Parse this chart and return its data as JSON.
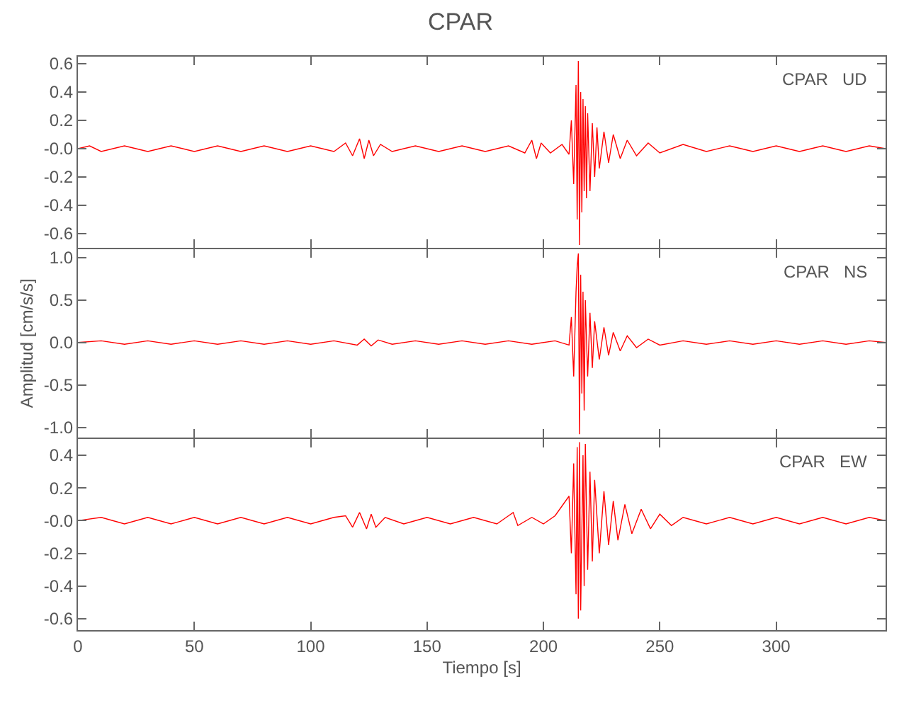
{
  "chart_data": [
    {
      "type": "line",
      "title": "CPAR",
      "annotations": [
        "CPAR   UD"
      ],
      "tick_labels": "y",
      "xlim": [
        0,
        347
      ],
      "xticks": [
        0,
        50,
        100,
        150,
        200,
        250,
        300
      ],
      "ylim": [
        -0.7,
        0.65
      ],
      "yticks": [
        {
          "value": -0.6,
          "label": "-0.6"
        },
        {
          "value": -0.4,
          "label": "-0.4"
        },
        {
          "value": -0.2,
          "label": "-0.2"
        },
        {
          "value": 0,
          "label": "-0.0"
        },
        0.2,
        0.4,
        0.6
      ],
      "series": [
        {
          "color": "#ff0000",
          "x": [
            0,
            5,
            10,
            20,
            30,
            40,
            50,
            60,
            70,
            80,
            90,
            100,
            110,
            115,
            118,
            121,
            123,
            125,
            127,
            130,
            135,
            145,
            155,
            165,
            175,
            185,
            192,
            195,
            197,
            199,
            203,
            208,
            211,
            212,
            213,
            214,
            214.5,
            215,
            215.5,
            216,
            216.5,
            217,
            217.5,
            218,
            218.5,
            219,
            220,
            221,
            222,
            223,
            224,
            226,
            228,
            230,
            233,
            236,
            240,
            245,
            250,
            260,
            270,
            280,
            290,
            300,
            310,
            320,
            330,
            340,
            347
          ],
          "values": [
            0,
            0.02,
            -0.02,
            0.02,
            -0.02,
            0.02,
            -0.02,
            0.02,
            -0.02,
            0.02,
            -0.02,
            0.02,
            -0.02,
            0.04,
            -0.05,
            0.07,
            -0.07,
            0.06,
            -0.05,
            0.03,
            -0.02,
            0.02,
            -0.02,
            0.02,
            -0.02,
            0.02,
            -0.03,
            0.06,
            -0.07,
            0.04,
            -0.03,
            0.03,
            -0.04,
            0.2,
            -0.25,
            0.45,
            -0.5,
            0.62,
            -0.68,
            0.4,
            -0.45,
            0.35,
            -0.3,
            0.3,
            -0.35,
            0.25,
            -0.3,
            0.18,
            -0.2,
            0.15,
            -0.14,
            0.12,
            -0.1,
            0.1,
            -0.07,
            0.06,
            -0.05,
            0.04,
            -0.03,
            0.03,
            -0.02,
            0.02,
            -0.02,
            0.02,
            -0.02,
            0.02,
            -0.02,
            0.02,
            0
          ]
        }
      ]
    },
    {
      "type": "line",
      "ylabel": "Amplitud [cm/s/s]",
      "annotations": [
        "CPAR   NS"
      ],
      "tick_labels": "y",
      "xlim": [
        0,
        347
      ],
      "xticks": [
        0,
        50,
        100,
        150,
        200,
        250,
        300
      ],
      "ylim": [
        -1.12,
        1.1
      ],
      "yticks": [
        {
          "value": -1,
          "label": "-1.0"
        },
        {
          "value": -0.5,
          "label": "-0.5"
        },
        {
          "value": 0,
          "label": "0.0"
        },
        0.5,
        {
          "value": 1,
          "label": "1.0"
        }
      ],
      "series": [
        {
          "color": "#ff0000",
          "x": [
            0,
            10,
            20,
            30,
            40,
            50,
            60,
            70,
            80,
            90,
            100,
            110,
            120,
            123,
            126,
            129,
            135,
            145,
            155,
            165,
            175,
            185,
            195,
            205,
            211,
            212,
            213,
            214,
            214.5,
            215,
            215.5,
            216,
            216.5,
            217,
            217.5,
            218,
            219,
            220,
            221,
            222,
            224,
            226,
            228,
            230,
            233,
            236,
            240,
            245,
            250,
            260,
            270,
            280,
            290,
            300,
            310,
            320,
            330,
            340,
            347
          ],
          "values": [
            0,
            0.02,
            -0.02,
            0.02,
            -0.02,
            0.02,
            -0.02,
            0.02,
            -0.02,
            0.02,
            -0.02,
            0.02,
            -0.03,
            0.04,
            -0.04,
            0.03,
            -0.02,
            0.02,
            -0.02,
            0.02,
            -0.02,
            0.02,
            -0.02,
            0.02,
            -0.03,
            0.3,
            -0.4,
            0.6,
            0.9,
            1.05,
            -1.08,
            0.8,
            -0.6,
            0.6,
            -0.8,
            0.5,
            -0.4,
            0.35,
            -0.3,
            0.25,
            -0.2,
            0.18,
            -0.15,
            0.12,
            -0.1,
            0.08,
            -0.06,
            0.04,
            -0.03,
            0.02,
            -0.02,
            0.02,
            -0.02,
            0.02,
            -0.02,
            0.02,
            -0.02,
            0.02,
            0
          ]
        }
      ]
    },
    {
      "type": "line",
      "xlabel": "Tiempo [s]",
      "annotations": [
        "CPAR   EW"
      ],
      "xlim": [
        0,
        347
      ],
      "xticks": [
        0,
        50,
        100,
        150,
        200,
        250,
        300
      ],
      "ylim": [
        -0.67,
        0.5
      ],
      "yticks": [
        {
          "value": -0.6,
          "label": "-0.6"
        },
        {
          "value": -0.4,
          "label": "-0.4"
        },
        {
          "value": -0.2,
          "label": "-0.2"
        },
        {
          "value": 0,
          "label": "-0.0"
        },
        0.2,
        0.4
      ],
      "series": [
        {
          "color": "#ff0000",
          "x": [
            0,
            10,
            20,
            30,
            40,
            50,
            60,
            70,
            80,
            90,
            100,
            110,
            115,
            118,
            121,
            124,
            126,
            128,
            132,
            140,
            150,
            160,
            170,
            180,
            185,
            187,
            189,
            195,
            200,
            205,
            211,
            212,
            213,
            214,
            214.5,
            215,
            215.5,
            216,
            217,
            217.5,
            218,
            219,
            220,
            221,
            222,
            224,
            226,
            228,
            230,
            232,
            235,
            238,
            242,
            246,
            250,
            255,
            260,
            270,
            280,
            290,
            300,
            310,
            320,
            330,
            340,
            347
          ],
          "values": [
            0,
            0.02,
            -0.02,
            0.02,
            -0.02,
            0.02,
            -0.02,
            0.02,
            -0.02,
            0.02,
            -0.02,
            0.02,
            0.03,
            -0.04,
            0.05,
            -0.05,
            0.04,
            -0.04,
            0.02,
            -0.02,
            0.02,
            -0.02,
            0.02,
            -0.02,
            0.03,
            0.05,
            -0.03,
            0.02,
            -0.02,
            0.03,
            0.15,
            -0.2,
            0.35,
            -0.45,
            0.45,
            -0.6,
            0.48,
            -0.55,
            0.4,
            -0.4,
            0.47,
            -0.3,
            0.3,
            -0.25,
            0.25,
            -0.2,
            0.18,
            -0.15,
            0.12,
            -0.12,
            0.1,
            -0.08,
            0.07,
            -0.05,
            0.04,
            -0.03,
            0.02,
            -0.02,
            0.02,
            -0.02,
            0.02,
            -0.02,
            0.02,
            -0.02,
            0.02,
            0
          ]
        }
      ]
    }
  ]
}
